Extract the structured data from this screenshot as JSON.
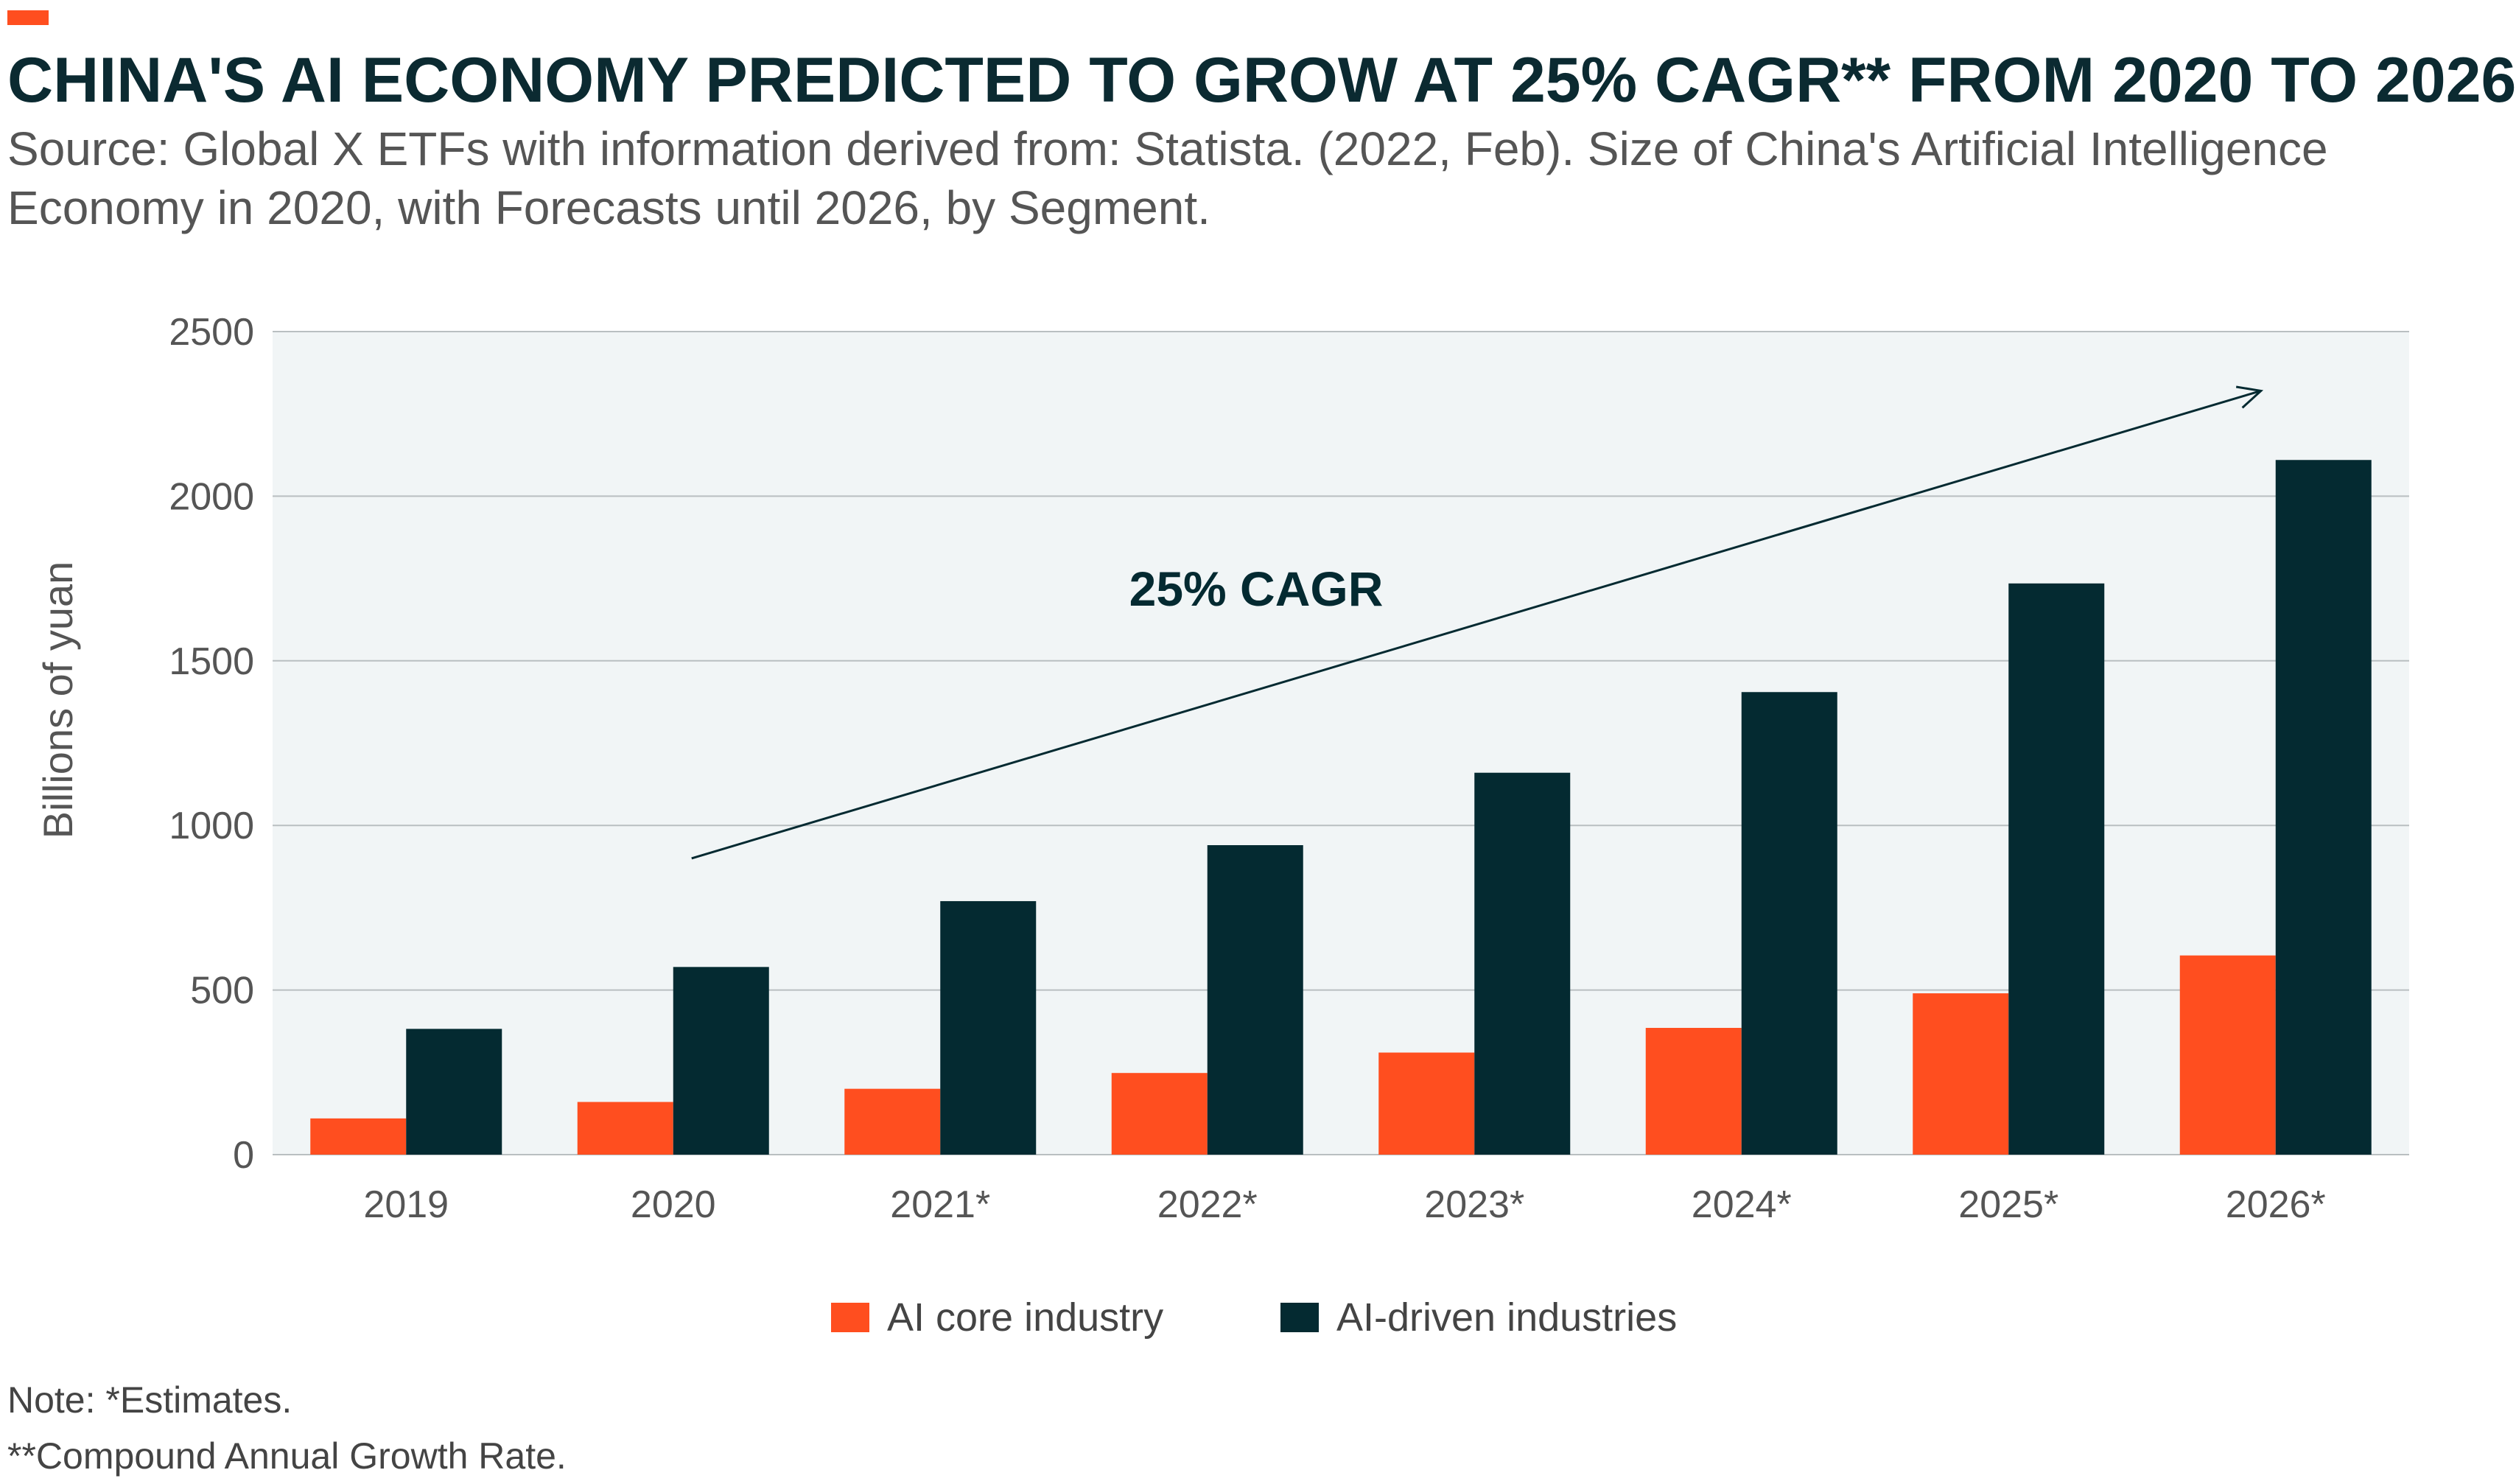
{
  "header": {
    "title": "CHINA'S AI ECONOMY PREDICTED TO GROW AT 25% CAGR** FROM 2020 TO 2026",
    "subtitle": "Source: Global X ETFs with information derived from: Statista. (2022, Feb). Size of China's Artificial Intelligence Economy in 2020, with Forecasts until 2026, by Segment."
  },
  "notes": {
    "line1": "Note: *Estimates.",
    "line2": "**Compound Annual Growth Rate."
  },
  "colors": {
    "accent": "#ff4e1f",
    "dark": "#042a31",
    "plot_bg": "#f1f5f6",
    "grid": "#b9bfc1",
    "axis_text": "#555555"
  },
  "chart_data": {
    "type": "bar",
    "categories": [
      "2019",
      "2020",
      "2021*",
      "2022*",
      "2023*",
      "2024*",
      "2025*",
      "2026*"
    ],
    "series": [
      {
        "name": "AI core industry",
        "color": "#ff4e1f",
        "values": [
          110,
          160,
          200,
          248,
          310,
          385,
          490,
          605
        ]
      },
      {
        "name": "AI-driven industries",
        "color": "#042a31",
        "values": [
          382,
          570,
          770,
          940,
          1160,
          1405,
          1735,
          2110
        ]
      }
    ],
    "ylabel": "Billions of yuan",
    "ylim": [
      0,
      2500
    ],
    "yticks": [
      0,
      500,
      1000,
      1500,
      2000,
      2500
    ],
    "grid": true,
    "legend_position": "bottom",
    "annotation": {
      "text": "25% CAGR",
      "arrow_from": [
        "2020",
        900
      ],
      "arrow_to": [
        "2026*",
        2320
      ]
    }
  }
}
